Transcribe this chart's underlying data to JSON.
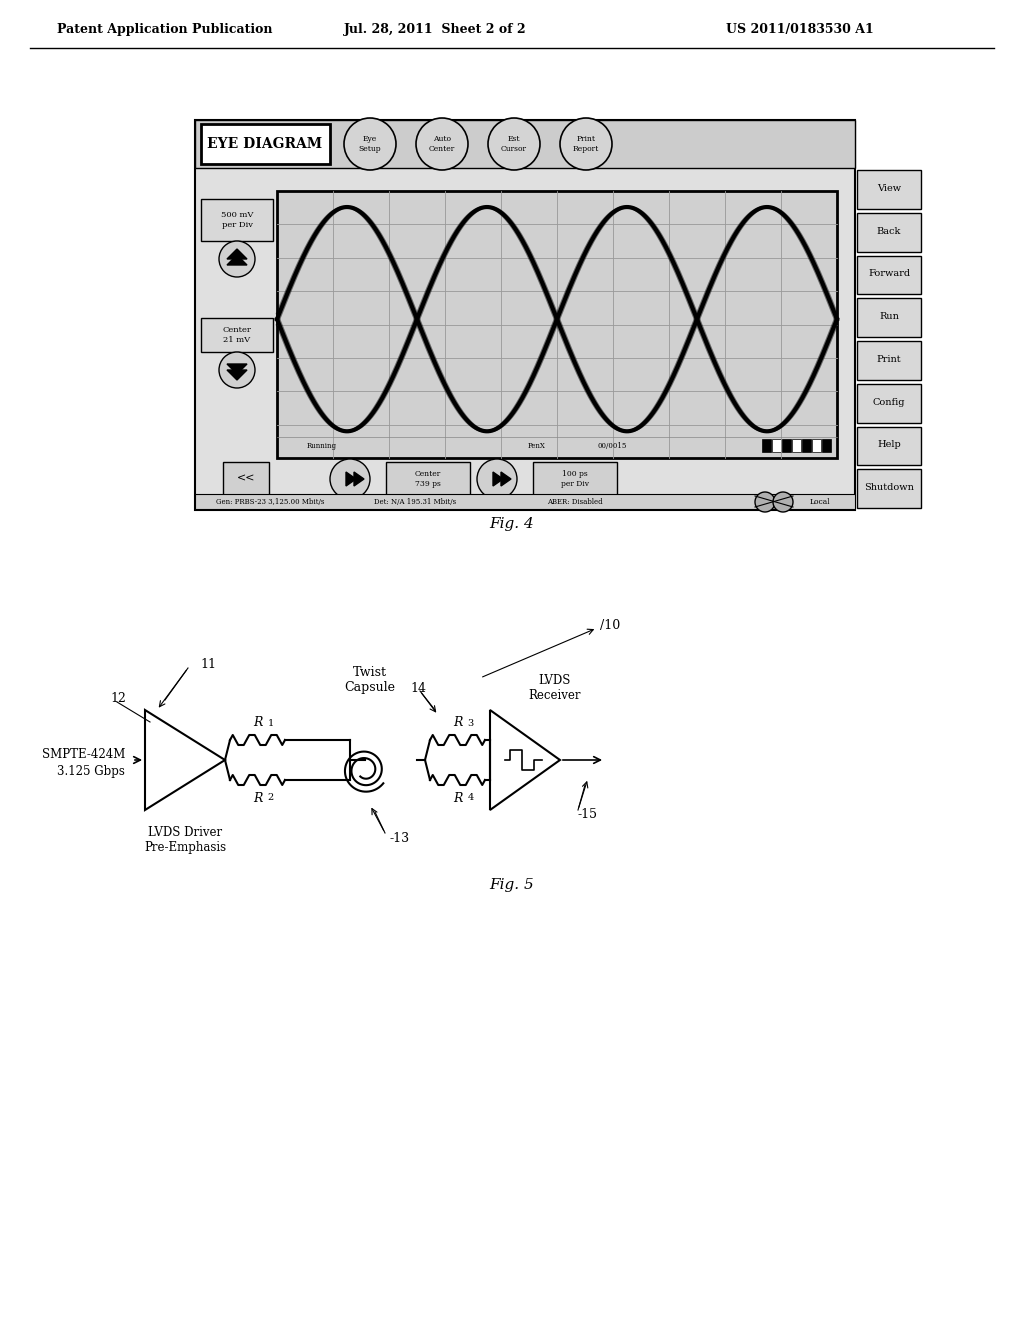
{
  "bg_color": "#ffffff",
  "header_left": "Patent Application Publication",
  "header_center": "Jul. 28, 2011  Sheet 2 of 2",
  "header_right": "US 2011/0183530 A1",
  "fig4_label": "Fig. 4",
  "fig5_label": "Fig. 5",
  "eye_diagram_title": "EYE DIAGRAM",
  "eye_buttons": [
    "Eye\nSetup",
    "Auto\nCenter",
    "Est\nCursor",
    "Print\nReport"
  ],
  "right_buttons": [
    "View",
    "Back",
    "Forward",
    "Run",
    "Print",
    "Config",
    "Help",
    "Shutdown"
  ],
  "left_label1": "500 mV\nper Div",
  "left_label2": "Center\n21 mV",
  "status_bar": [
    "Gen: PRBS-23 3,125.00 Mbit/s",
    "Det: N/A 195.31 Mbit/s",
    "ABER: Disabled",
    "Local"
  ],
  "circuit_labels": {
    "label_10": "10",
    "label_11": "11",
    "label_12": "12",
    "label_13": "13",
    "label_14": "14",
    "label_15": "15",
    "R1": "R",
    "R1_sub": "1",
    "R2": "R",
    "R2_sub": "2",
    "R3": "R",
    "R3_sub": "3",
    "R4": "R",
    "R4_sub": "4",
    "input_label": "SMPTE-424M\n3.125 Gbps",
    "driver_label": "LVDS Driver\nPre-Emphasis",
    "twist_label": "Twist\nCapsule",
    "receiver_label": "LVDS\nReceiver"
  }
}
